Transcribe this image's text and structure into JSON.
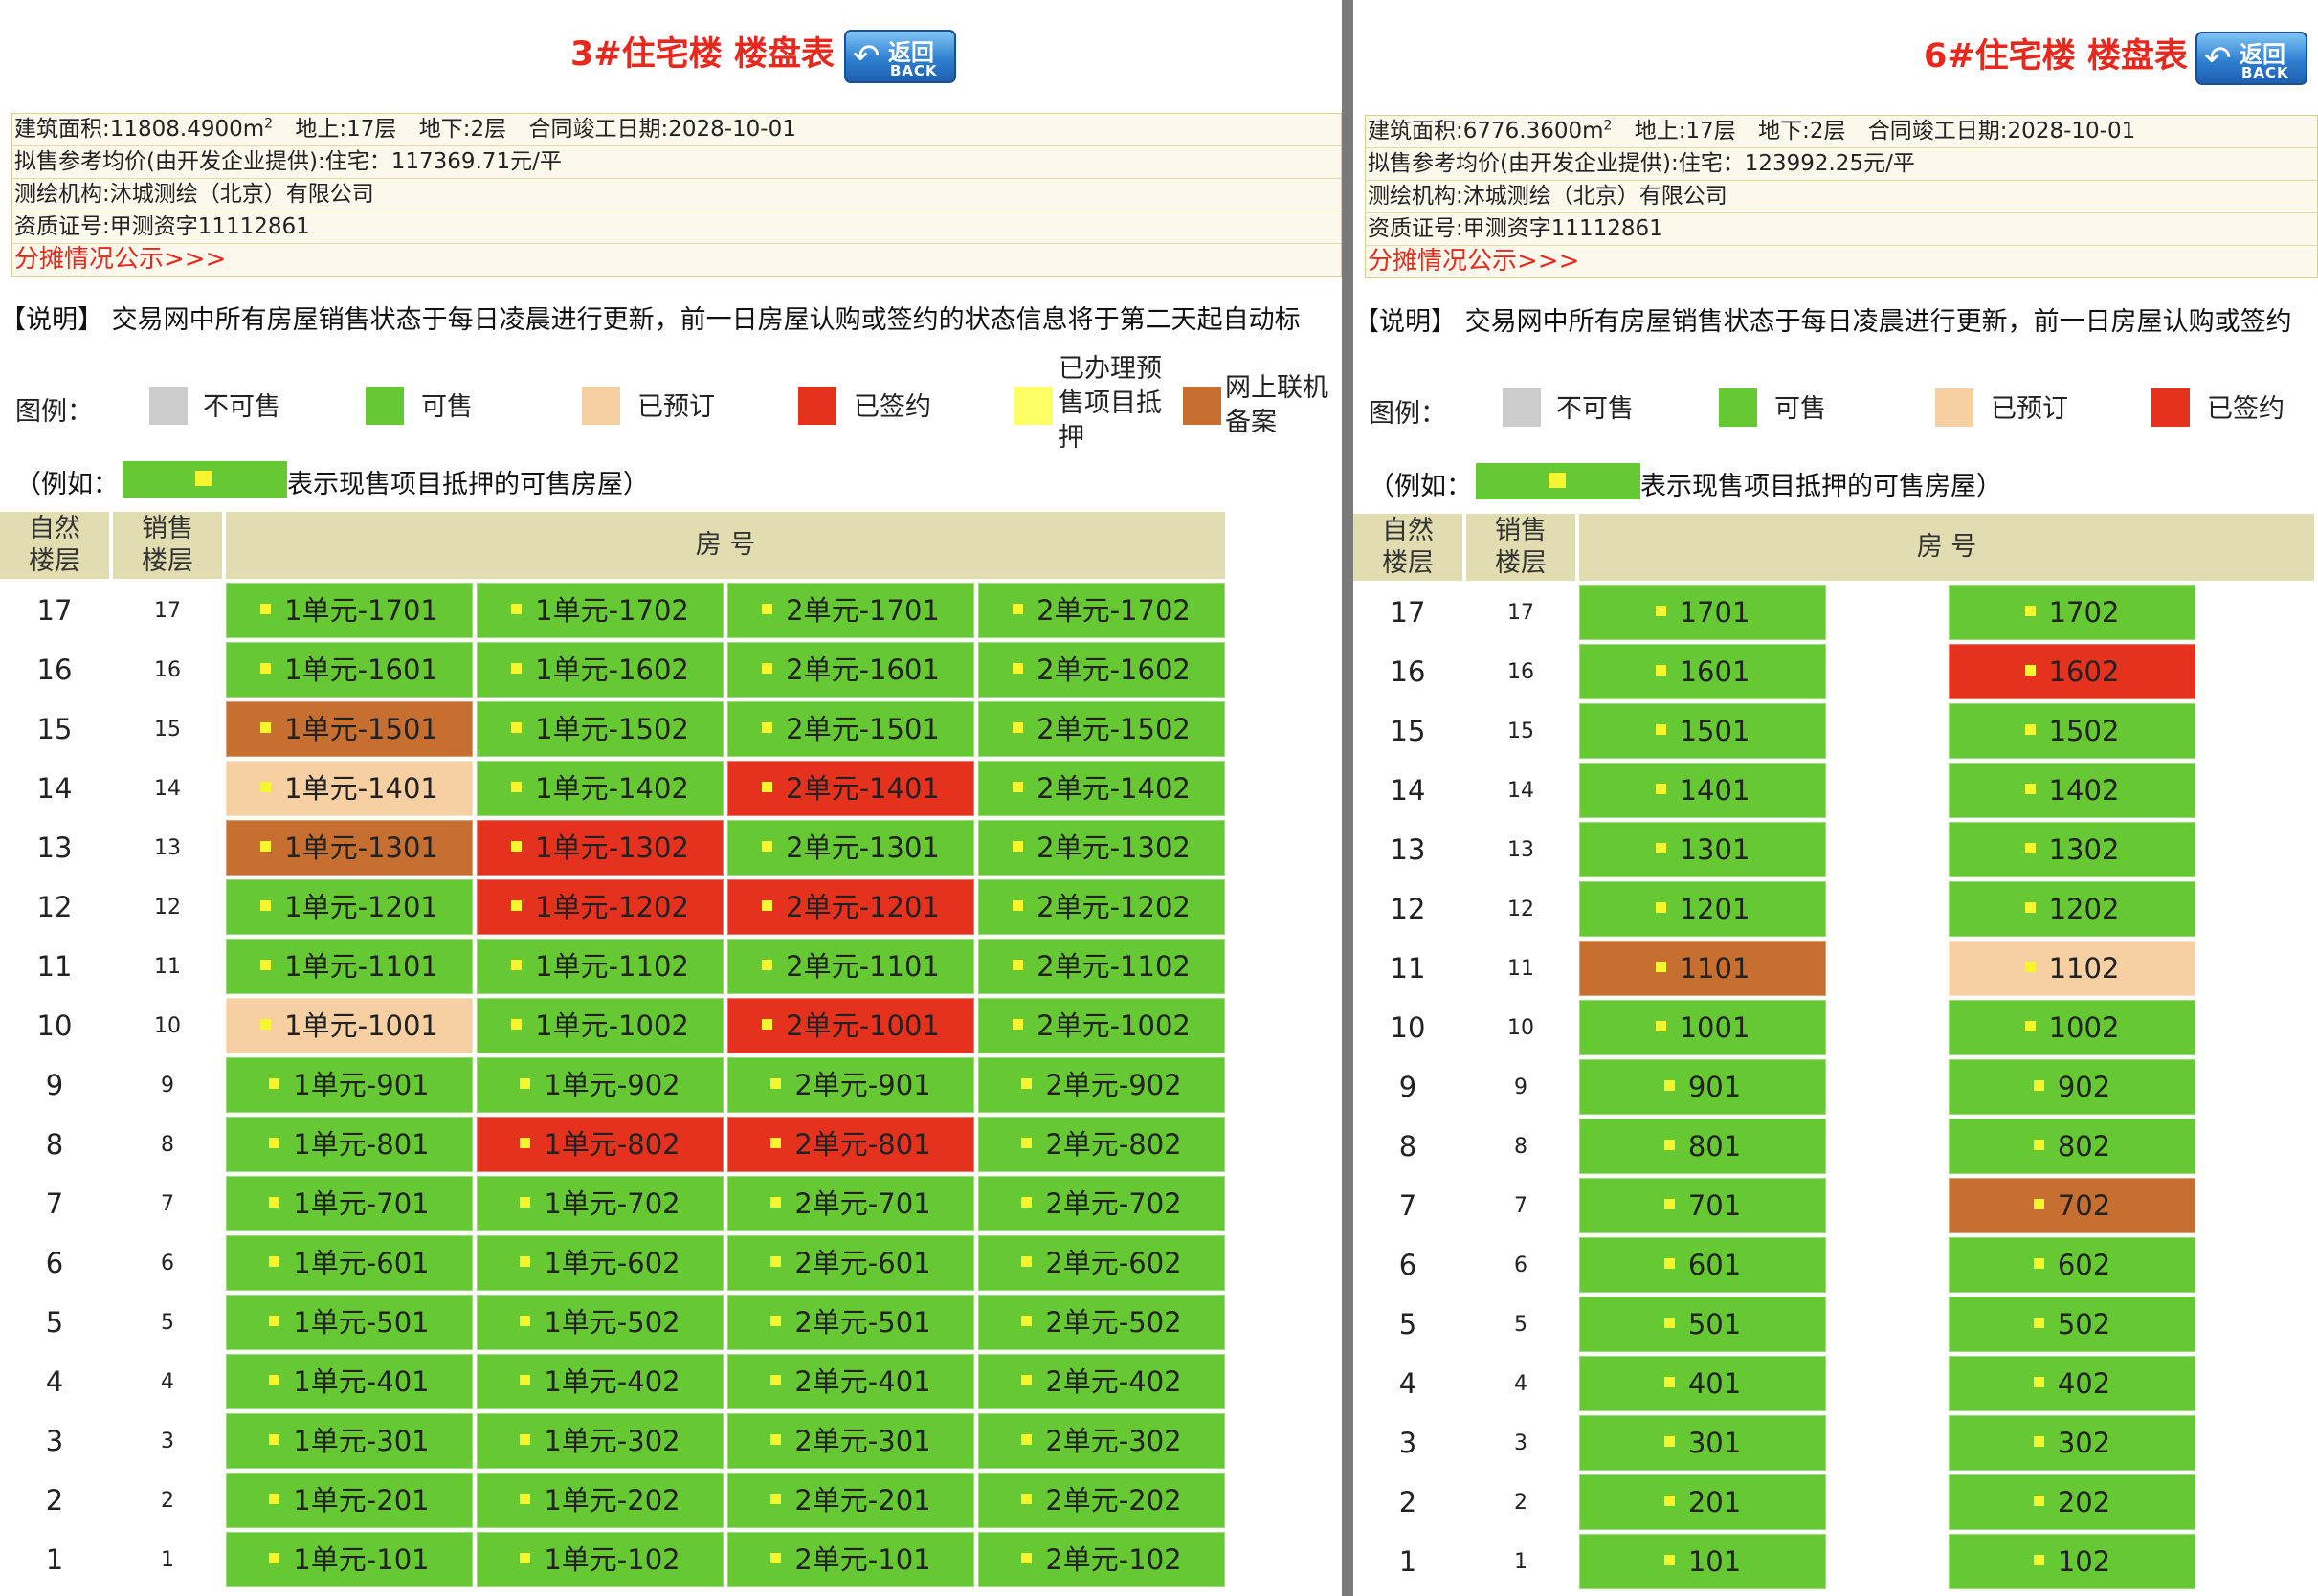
{
  "colors": {
    "unavail": "#cccccc",
    "avail": "#66c933",
    "reserved": "#f6cfa3",
    "signed": "#e5321f",
    "mortgage": "#ffff66",
    "filed": "#c66f31",
    "title": "#e8281c"
  },
  "back_button": {
    "cn": "返回",
    "en": "BACK",
    "icon": "back-arrow-icon"
  },
  "left": {
    "title": "3#住宅楼 楼盘表",
    "info": {
      "area_prefix": "建筑面积:11808.4900m",
      "area_sup": "2",
      "above": "地上:17层",
      "below": "地下:2层",
      "completion": "合同竣工日期:2028-10-01",
      "price": "拟售参考均价(由开发企业提供):住宅：117369.71元/平",
      "surveyor": "测绘机构:沐城测绘（北京）有限公司",
      "cert": "资质证号:甲测资字11112861",
      "share_link": "分摊情况公示>>>"
    },
    "note": "【说明】 交易网中所有房屋销售状态于每日凌晨进行更新，前一日房屋认购或签约的状态信息将于第二天起自动标",
    "legend": {
      "title": "图例：",
      "unavail": "不可售",
      "avail": "可售",
      "reserved": "已预订",
      "signed": "已签约",
      "mortgage_l1": "已办理预",
      "mortgage_l2": "售项目抵",
      "mortgage_l3": "押",
      "filed_l1": "网上联机",
      "filed_l2": "备案"
    },
    "example_prefix": "（例如：",
    "example_suffix": "表示现售项目抵押的可售房屋）",
    "headers": {
      "floor_l1": "自然",
      "floor_l2": "楼层",
      "sale_l1": "销售",
      "sale_l2": "楼层",
      "room": "房 号"
    },
    "rows": [
      {
        "floor": "17",
        "sale": "17",
        "rooms": [
          {
            "no": "1单元-1701",
            "s": "avail"
          },
          {
            "no": "1单元-1702",
            "s": "avail"
          },
          {
            "no": "2单元-1701",
            "s": "avail"
          },
          {
            "no": "2单元-1702",
            "s": "avail"
          }
        ]
      },
      {
        "floor": "16",
        "sale": "16",
        "rooms": [
          {
            "no": "1单元-1601",
            "s": "avail"
          },
          {
            "no": "1单元-1602",
            "s": "avail"
          },
          {
            "no": "2单元-1601",
            "s": "avail"
          },
          {
            "no": "2单元-1602",
            "s": "avail"
          }
        ]
      },
      {
        "floor": "15",
        "sale": "15",
        "rooms": [
          {
            "no": "1单元-1501",
            "s": "filed"
          },
          {
            "no": "1单元-1502",
            "s": "avail"
          },
          {
            "no": "2单元-1501",
            "s": "avail"
          },
          {
            "no": "2单元-1502",
            "s": "avail"
          }
        ]
      },
      {
        "floor": "14",
        "sale": "14",
        "rooms": [
          {
            "no": "1单元-1401",
            "s": "reserved"
          },
          {
            "no": "1单元-1402",
            "s": "avail"
          },
          {
            "no": "2单元-1401",
            "s": "signed"
          },
          {
            "no": "2单元-1402",
            "s": "avail"
          }
        ]
      },
      {
        "floor": "13",
        "sale": "13",
        "rooms": [
          {
            "no": "1单元-1301",
            "s": "filed"
          },
          {
            "no": "1单元-1302",
            "s": "signed"
          },
          {
            "no": "2单元-1301",
            "s": "avail"
          },
          {
            "no": "2单元-1302",
            "s": "avail"
          }
        ]
      },
      {
        "floor": "12",
        "sale": "12",
        "rooms": [
          {
            "no": "1单元-1201",
            "s": "avail"
          },
          {
            "no": "1单元-1202",
            "s": "signed"
          },
          {
            "no": "2单元-1201",
            "s": "signed"
          },
          {
            "no": "2单元-1202",
            "s": "avail"
          }
        ]
      },
      {
        "floor": "11",
        "sale": "11",
        "rooms": [
          {
            "no": "1单元-1101",
            "s": "avail"
          },
          {
            "no": "1单元-1102",
            "s": "avail"
          },
          {
            "no": "2单元-1101",
            "s": "avail"
          },
          {
            "no": "2单元-1102",
            "s": "avail"
          }
        ]
      },
      {
        "floor": "10",
        "sale": "10",
        "rooms": [
          {
            "no": "1单元-1001",
            "s": "reserved"
          },
          {
            "no": "1单元-1002",
            "s": "avail"
          },
          {
            "no": "2单元-1001",
            "s": "signed"
          },
          {
            "no": "2单元-1002",
            "s": "avail"
          }
        ]
      },
      {
        "floor": "9",
        "sale": "9",
        "rooms": [
          {
            "no": "1单元-901",
            "s": "avail"
          },
          {
            "no": "1单元-902",
            "s": "avail"
          },
          {
            "no": "2单元-901",
            "s": "avail"
          },
          {
            "no": "2单元-902",
            "s": "avail"
          }
        ]
      },
      {
        "floor": "8",
        "sale": "8",
        "rooms": [
          {
            "no": "1单元-801",
            "s": "avail"
          },
          {
            "no": "1单元-802",
            "s": "signed"
          },
          {
            "no": "2单元-801",
            "s": "signed"
          },
          {
            "no": "2单元-802",
            "s": "avail"
          }
        ]
      },
      {
        "floor": "7",
        "sale": "7",
        "rooms": [
          {
            "no": "1单元-701",
            "s": "avail"
          },
          {
            "no": "1单元-702",
            "s": "avail"
          },
          {
            "no": "2单元-701",
            "s": "avail"
          },
          {
            "no": "2单元-702",
            "s": "avail"
          }
        ]
      },
      {
        "floor": "6",
        "sale": "6",
        "rooms": [
          {
            "no": "1单元-601",
            "s": "avail"
          },
          {
            "no": "1单元-602",
            "s": "avail"
          },
          {
            "no": "2单元-601",
            "s": "avail"
          },
          {
            "no": "2单元-602",
            "s": "avail"
          }
        ]
      },
      {
        "floor": "5",
        "sale": "5",
        "rooms": [
          {
            "no": "1单元-501",
            "s": "avail"
          },
          {
            "no": "1单元-502",
            "s": "avail"
          },
          {
            "no": "2单元-501",
            "s": "avail"
          },
          {
            "no": "2单元-502",
            "s": "avail"
          }
        ]
      },
      {
        "floor": "4",
        "sale": "4",
        "rooms": [
          {
            "no": "1单元-401",
            "s": "avail"
          },
          {
            "no": "1单元-402",
            "s": "avail"
          },
          {
            "no": "2单元-401",
            "s": "avail"
          },
          {
            "no": "2单元-402",
            "s": "avail"
          }
        ]
      },
      {
        "floor": "3",
        "sale": "3",
        "rooms": [
          {
            "no": "1单元-301",
            "s": "avail"
          },
          {
            "no": "1单元-302",
            "s": "avail"
          },
          {
            "no": "2单元-301",
            "s": "avail"
          },
          {
            "no": "2单元-302",
            "s": "avail"
          }
        ]
      },
      {
        "floor": "2",
        "sale": "2",
        "rooms": [
          {
            "no": "1单元-201",
            "s": "avail"
          },
          {
            "no": "1单元-202",
            "s": "avail"
          },
          {
            "no": "2单元-201",
            "s": "avail"
          },
          {
            "no": "2单元-202",
            "s": "avail"
          }
        ]
      },
      {
        "floor": "1",
        "sale": "1",
        "rooms": [
          {
            "no": "1单元-101",
            "s": "avail"
          },
          {
            "no": "1单元-102",
            "s": "avail"
          },
          {
            "no": "2单元-101",
            "s": "avail"
          },
          {
            "no": "2单元-102",
            "s": "avail"
          }
        ]
      }
    ]
  },
  "right": {
    "title": "6#住宅楼 楼盘表",
    "info": {
      "area_prefix": "建筑面积:6776.3600m",
      "area_sup": "2",
      "above": "地上:17层",
      "below": "地下:2层",
      "completion": "合同竣工日期:2028-10-01",
      "price": "拟售参考均价(由开发企业提供):住宅：123992.25元/平",
      "surveyor": "测绘机构:沐城测绘（北京）有限公司",
      "cert": "资质证号:甲测资字11112861",
      "share_link": "分摊情况公示>>>"
    },
    "note": "【说明】 交易网中所有房屋销售状态于每日凌晨进行更新，前一日房屋认购或签约",
    "legend": {
      "title": "图例：",
      "unavail": "不可售",
      "avail": "可售",
      "reserved": "已预订",
      "signed": "已签约"
    },
    "example_prefix": "（例如：",
    "example_suffix": "表示现售项目抵押的可售房屋）",
    "headers": {
      "floor_l1": "自然",
      "floor_l2": "楼层",
      "sale_l1": "销售",
      "sale_l2": "楼层",
      "room": "房 号"
    },
    "rows": [
      {
        "floor": "17",
        "sale": "17",
        "rooms": [
          {
            "no": "1701",
            "s": "avail"
          },
          {
            "no": "1702",
            "s": "avail"
          }
        ]
      },
      {
        "floor": "16",
        "sale": "16",
        "rooms": [
          {
            "no": "1601",
            "s": "avail"
          },
          {
            "no": "1602",
            "s": "signed"
          }
        ]
      },
      {
        "floor": "15",
        "sale": "15",
        "rooms": [
          {
            "no": "1501",
            "s": "avail"
          },
          {
            "no": "1502",
            "s": "avail"
          }
        ]
      },
      {
        "floor": "14",
        "sale": "14",
        "rooms": [
          {
            "no": "1401",
            "s": "avail"
          },
          {
            "no": "1402",
            "s": "avail"
          }
        ]
      },
      {
        "floor": "13",
        "sale": "13",
        "rooms": [
          {
            "no": "1301",
            "s": "avail"
          },
          {
            "no": "1302",
            "s": "avail"
          }
        ]
      },
      {
        "floor": "12",
        "sale": "12",
        "rooms": [
          {
            "no": "1201",
            "s": "avail"
          },
          {
            "no": "1202",
            "s": "avail"
          }
        ]
      },
      {
        "floor": "11",
        "sale": "11",
        "rooms": [
          {
            "no": "1101",
            "s": "filed"
          },
          {
            "no": "1102",
            "s": "reserved"
          }
        ]
      },
      {
        "floor": "10",
        "sale": "10",
        "rooms": [
          {
            "no": "1001",
            "s": "avail"
          },
          {
            "no": "1002",
            "s": "avail"
          }
        ]
      },
      {
        "floor": "9",
        "sale": "9",
        "rooms": [
          {
            "no": "901",
            "s": "avail"
          },
          {
            "no": "902",
            "s": "avail"
          }
        ]
      },
      {
        "floor": "8",
        "sale": "8",
        "rooms": [
          {
            "no": "801",
            "s": "avail"
          },
          {
            "no": "802",
            "s": "avail"
          }
        ]
      },
      {
        "floor": "7",
        "sale": "7",
        "rooms": [
          {
            "no": "701",
            "s": "avail"
          },
          {
            "no": "702",
            "s": "filed"
          }
        ]
      },
      {
        "floor": "6",
        "sale": "6",
        "rooms": [
          {
            "no": "601",
            "s": "avail"
          },
          {
            "no": "602",
            "s": "avail"
          }
        ]
      },
      {
        "floor": "5",
        "sale": "5",
        "rooms": [
          {
            "no": "501",
            "s": "avail"
          },
          {
            "no": "502",
            "s": "avail"
          }
        ]
      },
      {
        "floor": "4",
        "sale": "4",
        "rooms": [
          {
            "no": "401",
            "s": "avail"
          },
          {
            "no": "402",
            "s": "avail"
          }
        ]
      },
      {
        "floor": "3",
        "sale": "3",
        "rooms": [
          {
            "no": "301",
            "s": "avail"
          },
          {
            "no": "302",
            "s": "avail"
          }
        ]
      },
      {
        "floor": "2",
        "sale": "2",
        "rooms": [
          {
            "no": "201",
            "s": "avail"
          },
          {
            "no": "202",
            "s": "avail"
          }
        ]
      },
      {
        "floor": "1",
        "sale": "1",
        "rooms": [
          {
            "no": "101",
            "s": "avail"
          },
          {
            "no": "102",
            "s": "avail"
          }
        ]
      }
    ]
  }
}
